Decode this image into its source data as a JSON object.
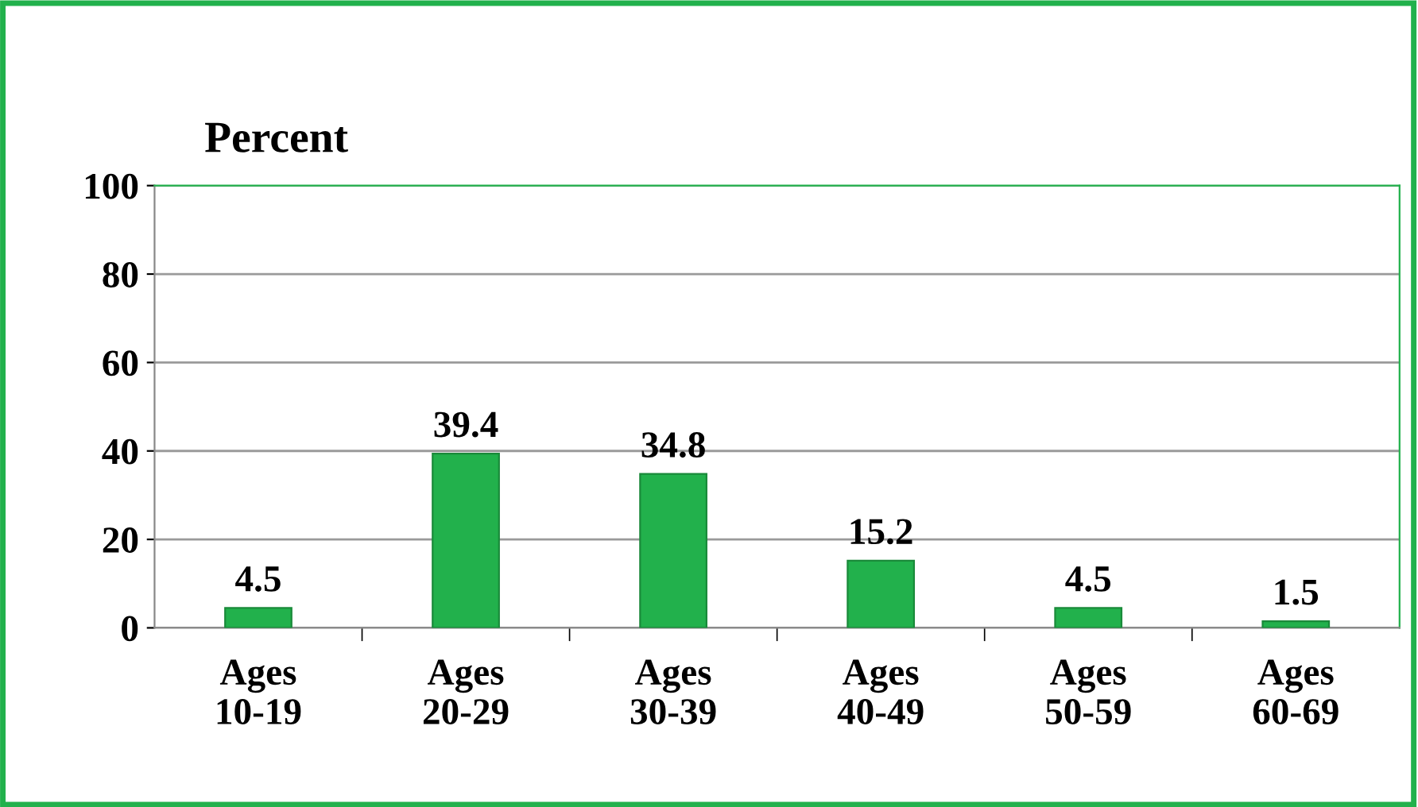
{
  "chart_data": {
    "type": "bar",
    "ylabel": "Percent",
    "categories": [
      "Ages\n10-19",
      "Ages\n20-29",
      "Ages\n30-39",
      "Ages\n40-49",
      "Ages\n50-59",
      "Ages\n60-69"
    ],
    "values": [
      4.5,
      39.4,
      34.8,
      15.2,
      4.5,
      1.5
    ],
    "color": "#22b14c",
    "ylim": [
      0,
      100
    ],
    "yticks": [
      0,
      20,
      40,
      60,
      80,
      100
    ],
    "grid": "y",
    "data_labels": true
  }
}
